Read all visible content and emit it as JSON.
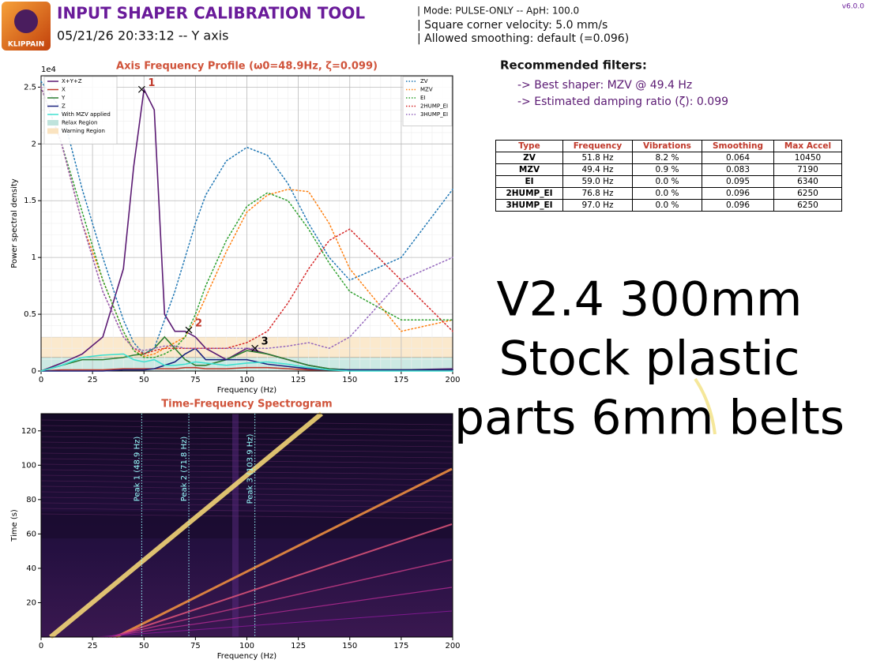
{
  "header": {
    "logo_text": "KLIPPAIN",
    "title": "INPUT SHAPER CALIBRATION TOOL",
    "subtitle": "05/21/26 20:33:12 -- Y axis",
    "info": [
      "| Mode: PULSE-ONLY -- ApH: 100.0",
      "| Square corner velocity: 5.0 mm/s",
      "| Allowed smoothing: default (=0.096)"
    ],
    "version": "v6.0.0"
  },
  "filters": {
    "title": "Recommended filters:",
    "lines": [
      "-> Best shaper: MZV @ 49.4 Hz",
      "-> Estimated damping ratio (ζ): 0.099"
    ]
  },
  "table": {
    "header": [
      "Type",
      "Frequency",
      "Vibrations",
      "Smoothing",
      "Max Accel"
    ],
    "rows": [
      [
        "ZV",
        "51.8 Hz",
        "8.2 %",
        "0.064",
        "10450"
      ],
      [
        "MZV",
        "49.4 Hz",
        "0.9 %",
        "0.083",
        "7190"
      ],
      [
        "EI",
        "59.0 Hz",
        "0.0 %",
        "0.095",
        "6340"
      ],
      [
        "2HUMP_EI",
        "76.8 Hz",
        "0.0 %",
        "0.096",
        "6250"
      ],
      [
        "3HUMP_EI",
        "97.0 Hz",
        "0.0 %",
        "0.096",
        "6250"
      ]
    ]
  },
  "annotation": [
    "V2.4 300mm",
    "Stock plastic",
    "parts 6mm belts"
  ],
  "chart_data": [
    {
      "type": "line",
      "title": "Axis Frequency Profile (ω0=48.9Hz, ζ=0.099)",
      "x_label": "Frequency (Hz)",
      "y_label": "Power spectral density",
      "y_offset_label": "1e4",
      "x": [
        0,
        10,
        20,
        30,
        40,
        45,
        50,
        55,
        60,
        65,
        70,
        75,
        80,
        90,
        100,
        110,
        120,
        130,
        140,
        150,
        175,
        200
      ],
      "xlim": [
        0,
        200
      ],
      "ylim": [
        0,
        2.6
      ],
      "xticks": [
        0,
        25,
        50,
        75,
        100,
        125,
        150,
        175,
        200
      ],
      "yticks": [
        0,
        0.5,
        1,
        1.5,
        2,
        2.5
      ],
      "grid": true,
      "regions": [
        {
          "name": "Relax Region",
          "color": "#bfe3dc",
          "range": [
            0,
            0.12
          ]
        },
        {
          "name": "Warning Region",
          "color": "#fae3c0",
          "range": [
            0.12,
            0.3
          ]
        }
      ],
      "series": [
        {
          "name": "X+Y+Z",
          "color": "#5b1a73",
          "linestyle": "solid",
          "values": [
            0,
            0.07,
            0.15,
            0.3,
            0.9,
            1.8,
            2.48,
            2.3,
            0.5,
            0.35,
            0.35,
            0.3,
            0.2,
            0.1,
            0.2,
            0.15,
            0.1,
            0.05,
            0.02,
            0.01,
            0.01,
            0.02
          ]
        },
        {
          "name": "X",
          "color": "#c0392b",
          "linestyle": "solid",
          "values": [
            0,
            0.01,
            0.01,
            0.01,
            0.02,
            0.02,
            0.02,
            0.02,
            0.02,
            0.02,
            0.03,
            0.03,
            0.02,
            0.02,
            0.03,
            0.03,
            0.02,
            0.01,
            0.01,
            0.01,
            0.01,
            0.01
          ]
        },
        {
          "name": "Y",
          "color": "#2e7d32",
          "linestyle": "solid",
          "values": [
            0,
            0.05,
            0.1,
            0.1,
            0.12,
            0.14,
            0.15,
            0.2,
            0.3,
            0.2,
            0.1,
            0.05,
            0.05,
            0.1,
            0.18,
            0.15,
            0.1,
            0.05,
            0.02,
            0.01,
            0.01,
            0.01
          ]
        },
        {
          "name": "Z",
          "color": "#1a237e",
          "linestyle": "solid",
          "values": [
            0,
            0,
            0,
            0,
            0.01,
            0.01,
            0.01,
            0.02,
            0.05,
            0.08,
            0.15,
            0.2,
            0.1,
            0.1,
            0.1,
            0.06,
            0.04,
            0.02,
            0.01,
            0.01,
            0.01,
            0.01
          ]
        },
        {
          "name": "With MZV applied",
          "color": "#40e0d0",
          "linestyle": "solid",
          "values": [
            0,
            0.05,
            0.12,
            0.14,
            0.15,
            0.1,
            0.08,
            0.1,
            0.05,
            0.05,
            0.06,
            0.08,
            0.07,
            0.05,
            0.07,
            0.08,
            0.06,
            0.03,
            0.01,
            0,
            0,
            0
          ]
        },
        {
          "name": "ZV",
          "color": "#1f77b4",
          "linestyle": "dotted",
          "values": [
            2.55,
            2.3,
            1.6,
            1.0,
            0.45,
            0.25,
            0.15,
            0.2,
            0.45,
            0.7,
            1.0,
            1.3,
            1.55,
            1.85,
            1.97,
            1.9,
            1.65,
            1.3,
            1.0,
            0.8,
            1.0,
            1.6
          ]
        },
        {
          "name": "MZV",
          "color": "#ff7f0e",
          "linestyle": "dotted",
          "values": [
            2.5,
            2.0,
            1.3,
            0.8,
            0.35,
            0.18,
            0.13,
            0.15,
            0.2,
            0.25,
            0.3,
            0.45,
            0.65,
            1.05,
            1.4,
            1.55,
            1.6,
            1.58,
            1.3,
            0.9,
            0.35,
            0.45
          ]
        },
        {
          "name": "EI",
          "color": "#2ca02c",
          "linestyle": "dotted",
          "values": [
            2.5,
            2.0,
            1.4,
            0.8,
            0.35,
            0.18,
            0.12,
            0.12,
            0.15,
            0.2,
            0.3,
            0.5,
            0.75,
            1.15,
            1.45,
            1.57,
            1.5,
            1.25,
            0.95,
            0.7,
            0.45,
            0.45
          ]
        },
        {
          "name": "2HUMP_EI",
          "color": "#d62728",
          "linestyle": "dotted",
          "values": [
            2.5,
            2.0,
            1.3,
            0.7,
            0.3,
            0.2,
            0.15,
            0.18,
            0.2,
            0.2,
            0.2,
            0.2,
            0.2,
            0.2,
            0.25,
            0.35,
            0.6,
            0.9,
            1.15,
            1.25,
            0.8,
            0.35
          ]
        },
        {
          "name": "3HUMP_EI",
          "color": "#9467bd",
          "linestyle": "dotted",
          "values": [
            2.5,
            2.0,
            1.3,
            0.7,
            0.3,
            0.2,
            0.18,
            0.2,
            0.22,
            0.22,
            0.2,
            0.2,
            0.2,
            0.2,
            0.2,
            0.2,
            0.22,
            0.25,
            0.2,
            0.3,
            0.8,
            1.0
          ]
        }
      ],
      "peaks": [
        {
          "label": "1",
          "x": 48.9,
          "y": 2.48,
          "color": "#c0392b"
        },
        {
          "label": "2",
          "x": 71.8,
          "y": 0.36,
          "color": "#c0392b"
        },
        {
          "label": "3",
          "x": 103.9,
          "y": 0.2,
          "color": "#000000"
        }
      ]
    },
    {
      "type": "spectrogram",
      "title": "Time-Frequency Spectrogram",
      "x_label": "Frequency (Hz)",
      "y_label": "Time (s)",
      "xlim": [
        0,
        200
      ],
      "ylim": [
        0,
        130
      ],
      "xticks": [
        0,
        25,
        50,
        75,
        100,
        125,
        150,
        175,
        200
      ],
      "yticks": [
        20,
        40,
        60,
        80,
        100,
        120
      ],
      "peak_lines": [
        {
          "x": 48.9,
          "label": "Peak 1 (48.9 Hz)"
        },
        {
          "x": 71.8,
          "label": "Peak 2 (71.8 Hz)"
        },
        {
          "x": 103.9,
          "label": "Peak 3 (103.9 Hz)"
        }
      ]
    }
  ]
}
